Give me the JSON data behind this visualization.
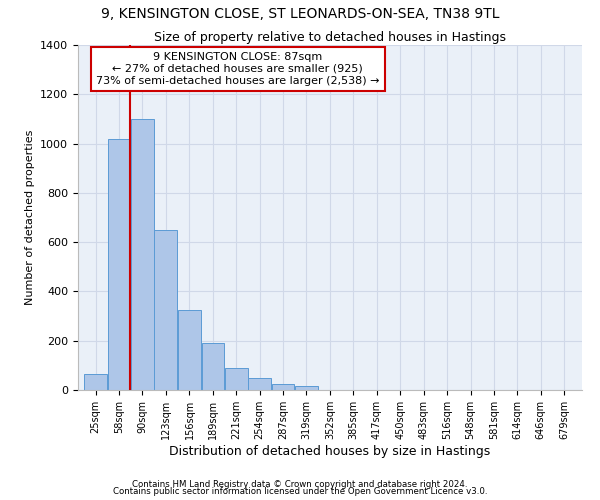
{
  "title1": "9, KENSINGTON CLOSE, ST LEONARDS-ON-SEA, TN38 9TL",
  "title2": "Size of property relative to detached houses in Hastings",
  "xlabel": "Distribution of detached houses by size in Hastings",
  "ylabel": "Number of detached properties",
  "footer1": "Contains HM Land Registry data © Crown copyright and database right 2024.",
  "footer2": "Contains public sector information licensed under the Open Government Licence v3.0.",
  "annotation_line1": "9 KENSINGTON CLOSE: 87sqm",
  "annotation_line2": "← 27% of detached houses are smaller (925)",
  "annotation_line3": "73% of semi-detached houses are larger (2,538) →",
  "bar_left_edges": [
    25,
    58,
    90,
    123,
    156,
    189,
    221,
    254,
    287,
    319,
    352,
    385,
    417,
    450,
    483,
    516,
    548,
    581,
    614,
    646,
    679
  ],
  "bar_widths": [
    33,
    32,
    33,
    33,
    33,
    32,
    33,
    33,
    32,
    33,
    33,
    32,
    33,
    33,
    33,
    32,
    33,
    33,
    32,
    33,
    33
  ],
  "bar_heights": [
    65,
    1020,
    1100,
    650,
    325,
    190,
    90,
    50,
    25,
    15,
    0,
    0,
    0,
    0,
    0,
    0,
    0,
    0,
    0,
    0,
    0
  ],
  "bar_color": "#aec6e8",
  "bar_edge_color": "#5b9bd5",
  "grid_color": "#d0d8e8",
  "bg_color": "#eaf0f8",
  "redline_x": 90,
  "redline_color": "#cc0000",
  "annotation_box_color": "#cc0000",
  "ylim": [
    0,
    1400
  ],
  "yticks": [
    0,
    200,
    400,
    600,
    800,
    1000,
    1200,
    1400
  ],
  "tick_labels": [
    "25sqm",
    "58sqm",
    "90sqm",
    "123sqm",
    "156sqm",
    "189sqm",
    "221sqm",
    "254sqm",
    "287sqm",
    "319sqm",
    "352sqm",
    "385sqm",
    "417sqm",
    "450sqm",
    "483sqm",
    "516sqm",
    "548sqm",
    "581sqm",
    "614sqm",
    "646sqm",
    "679sqm"
  ]
}
